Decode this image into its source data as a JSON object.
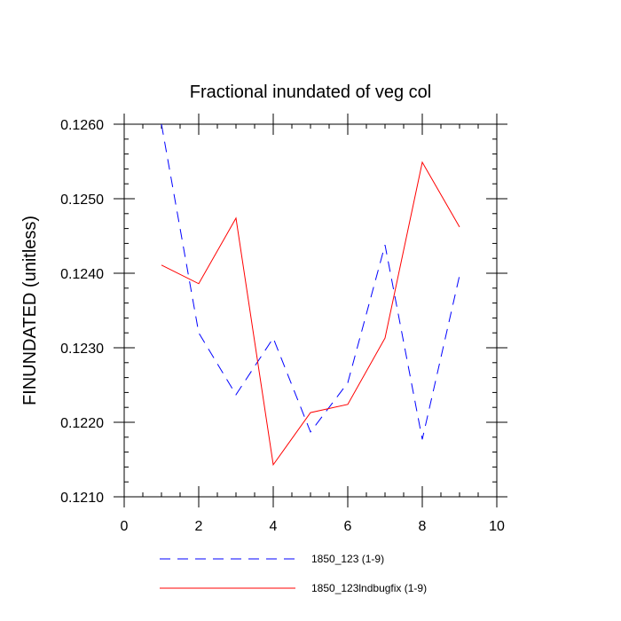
{
  "chart_data": {
    "type": "line",
    "title": "Fractional inundated of veg col",
    "xlabel": "",
    "ylabel": "FINUNDATED  (unitless)",
    "xlim": [
      0,
      10
    ],
    "ylim": [
      0.121,
      0.126
    ],
    "x_ticks": [
      "0",
      "2",
      "4",
      "6",
      "8",
      "10"
    ],
    "y_ticks": [
      "0.1210",
      "0.1220",
      "0.1230",
      "0.1240",
      "0.1250",
      "0.1260"
    ],
    "x_tick_values": [
      0,
      2,
      4,
      6,
      8,
      10
    ],
    "y_tick_values": [
      0.121,
      0.122,
      0.123,
      0.124,
      0.125,
      0.126
    ],
    "x_minor_step": 0.5,
    "y_minor_step": 0.0002,
    "legend_position": "bottom",
    "series": [
      {
        "name": "1850_123 (1-9)",
        "color": "#0000ff",
        "dash": "dashed",
        "x": [
          1,
          2,
          3,
          4,
          5,
          6,
          7,
          8,
          9
        ],
        "values": [
          0.126,
          0.1232,
          0.12237,
          0.12313,
          0.12187,
          0.12253,
          0.12438,
          0.12177,
          0.12397
        ]
      },
      {
        "name": "1850_123lndbugfix (1-9)",
        "color": "#ff0000",
        "dash": "solid",
        "x": [
          1,
          2,
          3,
          4,
          5,
          6,
          7,
          8,
          9
        ],
        "values": [
          0.12411,
          0.12386,
          0.12474,
          0.12143,
          0.12213,
          0.12224,
          0.12313,
          0.12549,
          0.12462
        ]
      }
    ]
  }
}
